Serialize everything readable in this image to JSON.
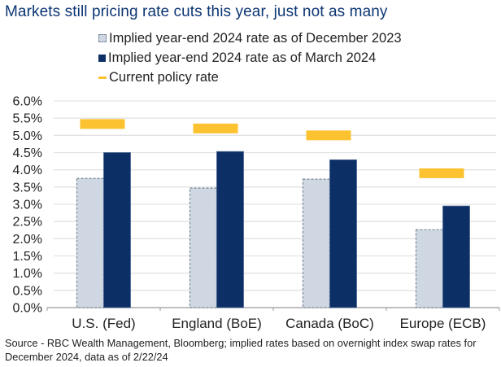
{
  "title": "Markets still pricing rate cuts this year, just not as many",
  "source": "Source - RBC Wealth Management, Bloomberg; implied rates based on overnight index swap rates for December 2024, data as of 2/22/24",
  "colors": {
    "title": "#0d3673",
    "dec2023": "#cfd8e2",
    "dec2023_border": "#7a8799",
    "mar2024": "#0c2f66",
    "policy": "#fcc22f",
    "grid": "#e3e3e3",
    "axis": "#999999"
  },
  "chart_data": {
    "type": "bar",
    "title": "Markets still pricing rate cuts this year, just not as many",
    "xlabel": "",
    "ylabel": "",
    "ylim": [
      0,
      6
    ],
    "ytick_step": 0.5,
    "ytick_labels": [
      "0.0%",
      "0.5%",
      "1.0%",
      "1.5%",
      "2.0%",
      "2.5%",
      "3.0%",
      "3.5%",
      "4.0%",
      "4.5%",
      "5.0%",
      "5.5%",
      "6.0%"
    ],
    "grid": true,
    "legend_position": "top",
    "categories": [
      "U.S. (Fed)",
      "England (BoE)",
      "Canada (BoC)",
      "Europe (ECB)"
    ],
    "series": [
      {
        "name": "Implied year-end 2024 rate as of December 2023",
        "kind": "bar",
        "values": [
          3.75,
          3.47,
          3.73,
          2.26
        ]
      },
      {
        "name": "Implied year-end 2024 rate as of March 2024",
        "kind": "bar",
        "values": [
          4.5,
          4.53,
          4.29,
          2.95
        ]
      },
      {
        "name": "Current policy rate",
        "kind": "marker",
        "values": [
          5.33,
          5.2,
          5.0,
          3.9
        ]
      }
    ]
  }
}
